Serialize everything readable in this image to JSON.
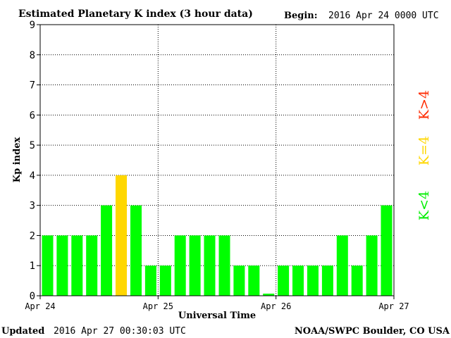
{
  "header": {
    "title": "Estimated Planetary K index (3 hour data)",
    "begin_label": "Begin:",
    "begin_value": "2016 Apr 24 0000 UTC"
  },
  "footer": {
    "updated_label": "Updated",
    "updated_value": "2016 Apr 27 00:30:03 UTC",
    "credit": "NOAA/SWPC Boulder, CO USA"
  },
  "legend": {
    "above": "K>4",
    "equal": "K=4",
    "below": "K<4"
  },
  "colors": {
    "below": "#00ff00",
    "equal": "#ffd700",
    "above": "#ff2a00",
    "axis": "#000000",
    "grid": "#000000"
  },
  "chart_data": {
    "type": "bar",
    "title": "Estimated Planetary K index (3 hour data)",
    "xlabel": "Universal Time",
    "ylabel": "Kp index",
    "ylim": [
      0,
      9
    ],
    "yticks": [
      0,
      1,
      2,
      3,
      4,
      5,
      6,
      7,
      8,
      9
    ],
    "xtick_labels": [
      "Apr 24",
      "Apr 25",
      "Apr 26",
      "Apr 27"
    ],
    "bars_per_day": 8,
    "grid": true,
    "values": [
      2,
      2,
      2,
      2,
      3,
      4,
      3,
      1,
      1,
      2,
      2,
      2,
      2,
      1,
      1,
      0.07,
      1,
      1,
      1,
      1,
      2,
      1,
      2,
      3
    ]
  }
}
